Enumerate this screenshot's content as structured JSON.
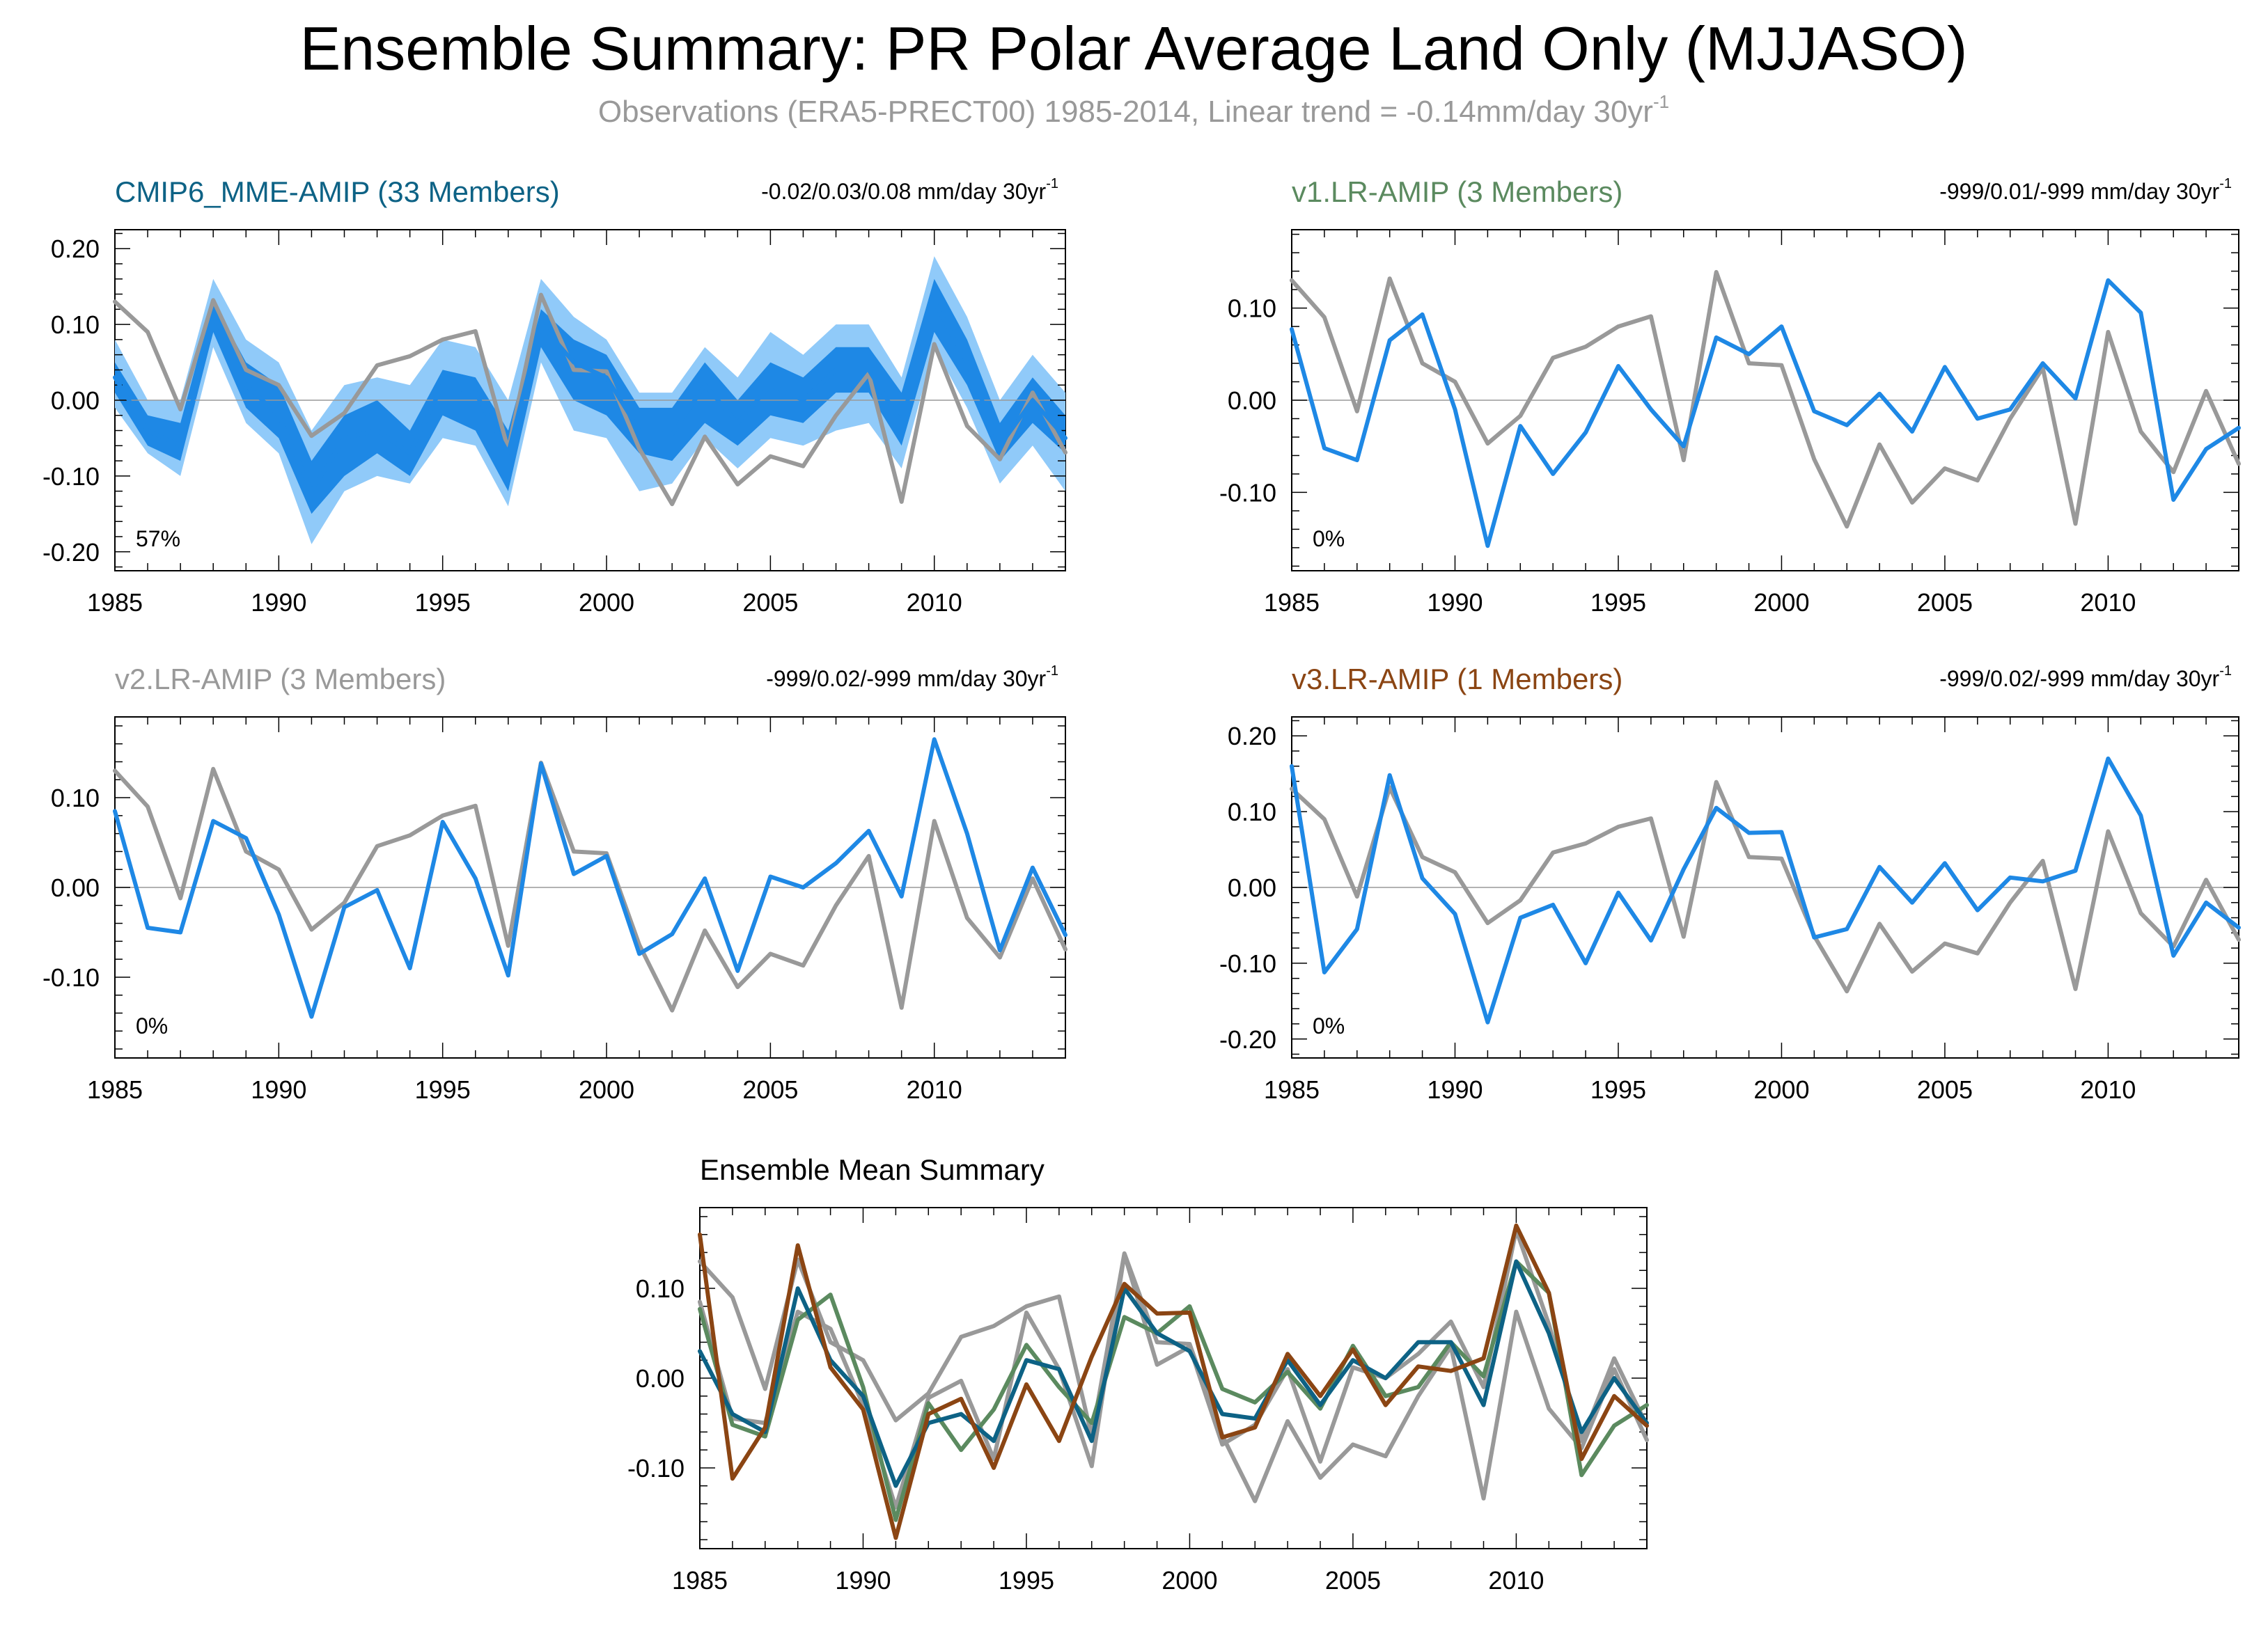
{
  "title": "Ensemble Summary: PR Polar Average Land Only (MJJASO)",
  "subtitle": "Observations (ERA5-PRECT00) 1985-2014, Linear trend = -0.14mm/day 30yr",
  "subtitle_sup": "-1",
  "colors": {
    "obs": "#999999",
    "model": "#1e88e5",
    "band_outer": "#90caf9",
    "band_inner": "#1e88e5",
    "title_panel1": "#0d6285",
    "title_panel2": "#5b8a5f",
    "title_panel3": "#999999",
    "title_panel4": "#8b4513"
  },
  "chart_data": [
    {
      "type": "line",
      "title": "CMIP6_MME-AMIP (33 Members)",
      "trend_label": "-0.02/0.03/0.08 mm/day 30yr",
      "trend_sup": "-1",
      "percent_label": "57%",
      "ylim": [
        -0.225,
        0.225
      ],
      "yticks": [
        "0.20",
        "0.10",
        "0.00",
        "-0.10",
        "-0.20"
      ],
      "ytick_values": [
        0.2,
        0.1,
        0.0,
        -0.1,
        -0.2
      ],
      "xticks": [
        "1985",
        "1990",
        "1995",
        "2000",
        "2005",
        "2010"
      ],
      "xtick_values": [
        1985,
        1990,
        1995,
        2000,
        2005,
        2010
      ],
      "xlim": [
        1985,
        2014
      ],
      "x": [
        1985,
        1986,
        1987,
        1988,
        1989,
        1990,
        1991,
        1992,
        1993,
        1994,
        1995,
        1996,
        1997,
        1998,
        1999,
        2000,
        2001,
        2002,
        2003,
        2004,
        2005,
        2006,
        2007,
        2008,
        2009,
        2010,
        2011,
        2012,
        2013,
        2014
      ],
      "bands": [
        {
          "name": "",
          "color": "#90caf9",
          "lower": [
            -0.01,
            -0.07,
            -0.1,
            0.07,
            -0.03,
            -0.07,
            -0.19,
            -0.12,
            -0.1,
            -0.11,
            -0.05,
            -0.06,
            -0.14,
            0.05,
            -0.04,
            -0.05,
            -0.12,
            -0.11,
            -0.05,
            -0.09,
            -0.05,
            -0.06,
            -0.04,
            -0.03,
            -0.09,
            0.07,
            -0.01,
            -0.11,
            -0.06,
            -0.12
          ],
          "upper": [
            0.08,
            0.0,
            0.0,
            0.16,
            0.08,
            0.05,
            -0.04,
            0.02,
            0.03,
            0.02,
            0.08,
            0.07,
            0.0,
            0.16,
            0.11,
            0.08,
            0.01,
            0.01,
            0.07,
            0.03,
            0.09,
            0.06,
            0.1,
            0.1,
            0.03,
            0.19,
            0.11,
            0.0,
            0.06,
            0.01
          ]
        },
        {
          "name": "",
          "color": "#1e88e5",
          "lower": [
            0.01,
            -0.06,
            -0.08,
            0.09,
            -0.01,
            -0.05,
            -0.15,
            -0.1,
            -0.07,
            -0.1,
            -0.02,
            -0.04,
            -0.12,
            0.07,
            0.0,
            -0.02,
            -0.07,
            -0.08,
            -0.03,
            -0.06,
            -0.02,
            -0.03,
            0.01,
            0.01,
            -0.06,
            0.09,
            0.02,
            -0.08,
            -0.03,
            -0.07
          ],
          "upper": [
            0.05,
            -0.02,
            -0.03,
            0.13,
            0.05,
            0.02,
            -0.08,
            -0.02,
            0.0,
            -0.04,
            0.04,
            0.03,
            -0.04,
            0.12,
            0.08,
            0.06,
            -0.01,
            -0.01,
            0.05,
            0.0,
            0.05,
            0.03,
            0.07,
            0.07,
            0.01,
            0.16,
            0.08,
            -0.03,
            0.03,
            -0.02
          ]
        }
      ],
      "zero_line": true,
      "series": [
        {
          "name": "",
          "color": "#999999",
          "values": [
            0.13,
            0.09,
            -0.012,
            0.132,
            0.04,
            0.02,
            -0.047,
            -0.017,
            0.046,
            0.058,
            0.08,
            0.091,
            -0.065,
            0.139,
            0.04,
            0.038,
            -0.064,
            -0.137,
            -0.048,
            -0.111,
            -0.074,
            -0.087,
            -0.02,
            0.035,
            -0.134,
            0.074,
            -0.034,
            -0.078,
            0.01,
            -0.069
          ]
        },
        {
          "name": "",
          "color": "#1e88e5",
          "values": [
            0.03,
            -0.04,
            -0.06,
            0.1,
            0.02,
            -0.02,
            -0.12,
            -0.05,
            -0.04,
            -0.07,
            0.02,
            0.01,
            -0.07,
            0.1,
            0.05,
            0.03,
            -0.04,
            -0.045,
            0.02,
            -0.03,
            0.02,
            0.0,
            0.04,
            0.04,
            -0.03,
            0.13,
            0.05,
            -0.06,
            0.0,
            -0.05
          ]
        }
      ]
    },
    {
      "type": "line",
      "title": "v1.LR-AMIP (3 Members)",
      "trend_label": "-999/0.01/-999 mm/day 30yr",
      "trend_sup": "-1",
      "percent_label": "0%",
      "ylim": [
        -0.185,
        0.185
      ],
      "yticks": [
        "0.10",
        "0.00",
        "-0.10"
      ],
      "ytick_values": [
        0.1,
        0.0,
        -0.1
      ],
      "xticks": [
        "1985",
        "1990",
        "1995",
        "2000",
        "2005",
        "2010"
      ],
      "xtick_values": [
        1985,
        1990,
        1995,
        2000,
        2005,
        2010
      ],
      "xlim": [
        1985,
        2014
      ],
      "x": [
        1985,
        1986,
        1987,
        1988,
        1989,
        1990,
        1991,
        1992,
        1993,
        1994,
        1995,
        1996,
        1997,
        1998,
        1999,
        2000,
        2001,
        2002,
        2003,
        2004,
        2005,
        2006,
        2007,
        2008,
        2009,
        2010,
        2011,
        2012,
        2013,
        2014
      ],
      "bands": [],
      "zero_line": true,
      "series": [
        {
          "name": "",
          "color": "#999999",
          "values": [
            0.13,
            0.09,
            -0.012,
            0.132,
            0.04,
            0.02,
            -0.047,
            -0.017,
            0.046,
            0.058,
            0.08,
            0.091,
            -0.065,
            0.139,
            0.04,
            0.038,
            -0.064,
            -0.137,
            -0.048,
            -0.111,
            -0.074,
            -0.087,
            -0.02,
            0.035,
            -0.134,
            0.074,
            -0.034,
            -0.078,
            0.01,
            -0.069
          ]
        },
        {
          "name": "",
          "color": "#1e88e5",
          "values": [
            0.077,
            -0.052,
            -0.065,
            0.065,
            0.093,
            -0.01,
            -0.158,
            -0.028,
            -0.08,
            -0.035,
            0.037,
            -0.01,
            -0.05,
            0.068,
            0.05,
            0.08,
            -0.012,
            -0.027,
            0.007,
            -0.034,
            0.036,
            -0.02,
            -0.01,
            0.04,
            0.002,
            0.13,
            0.095,
            -0.108,
            -0.053,
            -0.03
          ]
        }
      ]
    },
    {
      "type": "line",
      "title": "v2.LR-AMIP (3 Members)",
      "trend_label": "-999/0.02/-999 mm/day 30yr",
      "trend_sup": "-1",
      "percent_label": "0%",
      "ylim": [
        -0.19,
        0.19
      ],
      "yticks": [
        "0.10",
        "0.00",
        "-0.10"
      ],
      "ytick_values": [
        0.1,
        0.0,
        -0.1
      ],
      "xticks": [
        "1985",
        "1990",
        "1995",
        "2000",
        "2005",
        "2010"
      ],
      "xtick_values": [
        1985,
        1990,
        1995,
        2000,
        2005,
        2010
      ],
      "xlim": [
        1985,
        2014
      ],
      "x": [
        1985,
        1986,
        1987,
        1988,
        1989,
        1990,
        1991,
        1992,
        1993,
        1994,
        1995,
        1996,
        1997,
        1998,
        1999,
        2000,
        2001,
        2002,
        2003,
        2004,
        2005,
        2006,
        2007,
        2008,
        2009,
        2010,
        2011,
        2012,
        2013,
        2014
      ],
      "bands": [],
      "zero_line": true,
      "series": [
        {
          "name": "",
          "color": "#999999",
          "values": [
            0.13,
            0.09,
            -0.012,
            0.132,
            0.04,
            0.02,
            -0.047,
            -0.017,
            0.046,
            0.058,
            0.08,
            0.091,
            -0.065,
            0.139,
            0.04,
            0.038,
            -0.064,
            -0.137,
            -0.048,
            -0.111,
            -0.074,
            -0.087,
            -0.02,
            0.035,
            -0.134,
            0.074,
            -0.034,
            -0.078,
            0.01,
            -0.069
          ]
        },
        {
          "name": "",
          "color": "#1e88e5",
          "values": [
            0.085,
            -0.045,
            -0.05,
            0.074,
            0.055,
            -0.03,
            -0.144,
            -0.022,
            -0.003,
            -0.09,
            0.073,
            0.01,
            -0.098,
            0.138,
            0.015,
            0.035,
            -0.074,
            -0.052,
            0.01,
            -0.093,
            0.012,
            0.0,
            0.027,
            0.063,
            -0.01,
            0.165,
            0.06,
            -0.07,
            0.022,
            -0.053
          ]
        }
      ]
    },
    {
      "type": "line",
      "title": "v3.LR-AMIP (1 Members)",
      "trend_label": "-999/0.02/-999 mm/day 30yr",
      "trend_sup": "-1",
      "percent_label": "0%",
      "ylim": [
        -0.225,
        0.225
      ],
      "yticks": [
        "0.20",
        "0.10",
        "0.00",
        "-0.10",
        "-0.20"
      ],
      "ytick_values": [
        0.2,
        0.1,
        0.0,
        -0.1,
        -0.2
      ],
      "xticks": [
        "1985",
        "1990",
        "1995",
        "2000",
        "2005",
        "2010"
      ],
      "xtick_values": [
        1985,
        1990,
        1995,
        2000,
        2005,
        2010
      ],
      "xlim": [
        1985,
        2014
      ],
      "x": [
        1985,
        1986,
        1987,
        1988,
        1989,
        1990,
        1991,
        1992,
        1993,
        1994,
        1995,
        1996,
        1997,
        1998,
        1999,
        2000,
        2001,
        2002,
        2003,
        2004,
        2005,
        2006,
        2007,
        2008,
        2009,
        2010,
        2011,
        2012,
        2013,
        2014
      ],
      "bands": [],
      "zero_line": true,
      "series": [
        {
          "name": "",
          "color": "#999999",
          "values": [
            0.13,
            0.09,
            -0.012,
            0.132,
            0.04,
            0.02,
            -0.047,
            -0.017,
            0.046,
            0.058,
            0.08,
            0.091,
            -0.065,
            0.139,
            0.04,
            0.038,
            -0.064,
            -0.137,
            -0.048,
            -0.111,
            -0.074,
            -0.087,
            -0.02,
            0.035,
            -0.134,
            0.074,
            -0.034,
            -0.078,
            0.01,
            -0.069
          ]
        },
        {
          "name": "",
          "color": "#1e88e5",
          "values": [
            0.16,
            -0.112,
            -0.055,
            0.148,
            0.012,
            -0.035,
            -0.178,
            -0.04,
            -0.023,
            -0.1,
            -0.007,
            -0.07,
            0.024,
            0.105,
            0.072,
            0.073,
            -0.066,
            -0.055,
            0.027,
            -0.02,
            0.032,
            -0.03,
            0.013,
            0.008,
            0.022,
            0.17,
            0.095,
            -0.09,
            -0.02,
            -0.053
          ]
        }
      ]
    },
    {
      "type": "line",
      "title": "Ensemble Mean Summary",
      "trend_label": "",
      "trend_sup": "",
      "percent_label": "",
      "ylim": [
        -0.19,
        0.19
      ],
      "yticks": [
        "0.10",
        "0.00",
        "-0.10"
      ],
      "ytick_values": [
        0.1,
        0.0,
        -0.1
      ],
      "xticks": [
        "1985",
        "1990",
        "1995",
        "2000",
        "2005",
        "2010"
      ],
      "xtick_values": [
        1985,
        1990,
        1995,
        2000,
        2005,
        2010
      ],
      "xlim": [
        1985,
        2014
      ],
      "x": [
        1985,
        1986,
        1987,
        1988,
        1989,
        1990,
        1991,
        1992,
        1993,
        1994,
        1995,
        1996,
        1997,
        1998,
        1999,
        2000,
        2001,
        2002,
        2003,
        2004,
        2005,
        2006,
        2007,
        2008,
        2009,
        2010,
        2011,
        2012,
        2013,
        2014
      ],
      "bands": [],
      "zero_line": false,
      "series": [
        {
          "name": "",
          "color": "#999999",
          "values": [
            0.13,
            0.09,
            -0.012,
            0.132,
            0.04,
            0.02,
            -0.047,
            -0.017,
            0.046,
            0.058,
            0.08,
            0.091,
            -0.065,
            0.139,
            0.04,
            0.038,
            -0.064,
            -0.137,
            -0.048,
            -0.111,
            -0.074,
            -0.087,
            -0.02,
            0.035,
            -0.134,
            0.074,
            -0.034,
            -0.078,
            0.01,
            -0.069
          ]
        },
        {
          "name": "",
          "color": "#999999",
          "values": [
            0.085,
            -0.045,
            -0.05,
            0.074,
            0.055,
            -0.03,
            -0.144,
            -0.022,
            -0.003,
            -0.09,
            0.073,
            0.01,
            -0.098,
            0.138,
            0.015,
            0.035,
            -0.074,
            -0.052,
            0.01,
            -0.093,
            0.012,
            0.0,
            0.027,
            0.063,
            -0.01,
            0.165,
            0.06,
            -0.07,
            0.022,
            -0.053
          ]
        },
        {
          "name": "",
          "color": "#5b8a5f",
          "values": [
            0.077,
            -0.052,
            -0.065,
            0.065,
            0.093,
            -0.01,
            -0.158,
            -0.028,
            -0.08,
            -0.035,
            0.037,
            -0.01,
            -0.05,
            0.068,
            0.05,
            0.08,
            -0.012,
            -0.027,
            0.007,
            -0.034,
            0.036,
            -0.02,
            -0.01,
            0.04,
            0.002,
            0.13,
            0.095,
            -0.108,
            -0.053,
            -0.03
          ]
        },
        {
          "name": "",
          "color": "#0d6285",
          "values": [
            0.03,
            -0.04,
            -0.06,
            0.1,
            0.02,
            -0.02,
            -0.12,
            -0.05,
            -0.04,
            -0.07,
            0.02,
            0.01,
            -0.07,
            0.1,
            0.05,
            0.03,
            -0.04,
            -0.045,
            0.02,
            -0.03,
            0.02,
            0.0,
            0.04,
            0.04,
            -0.03,
            0.13,
            0.05,
            -0.06,
            0.0,
            -0.05
          ]
        },
        {
          "name": "",
          "color": "#8b4513",
          "values": [
            0.16,
            -0.112,
            -0.055,
            0.148,
            0.012,
            -0.035,
            -0.178,
            -0.04,
            -0.023,
            -0.1,
            -0.007,
            -0.07,
            0.024,
            0.105,
            0.072,
            0.073,
            -0.066,
            -0.055,
            0.027,
            -0.02,
            0.032,
            -0.03,
            0.013,
            0.008,
            0.022,
            0.17,
            0.095,
            -0.09,
            -0.02,
            -0.053
          ]
        }
      ]
    }
  ]
}
